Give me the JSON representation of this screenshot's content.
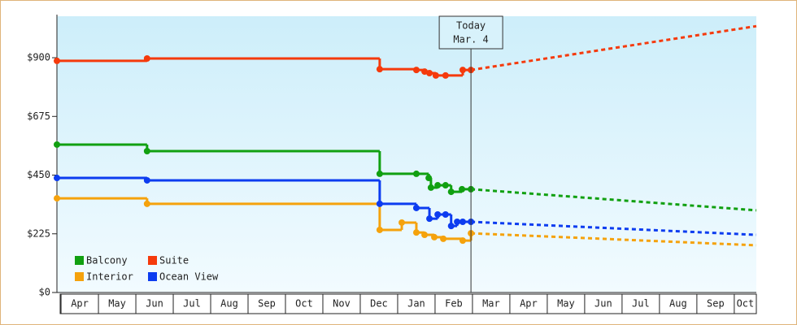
{
  "chart_data": {
    "type": "step-line",
    "xlim": [
      -0.11,
      18.59
    ],
    "ylim": [
      0,
      1059
    ],
    "xticks": [
      {
        "value": 0,
        "label": "Apr"
      },
      {
        "value": 1,
        "label": "May"
      },
      {
        "value": 2,
        "label": "Jun"
      },
      {
        "value": 3,
        "label": "Jul"
      },
      {
        "value": 4,
        "label": "Aug"
      },
      {
        "value": 5,
        "label": "Sep"
      },
      {
        "value": 6,
        "label": "Oct"
      },
      {
        "value": 7,
        "label": "Nov"
      },
      {
        "value": 8,
        "label": "Dec"
      },
      {
        "value": 9,
        "label": "Jan"
      },
      {
        "value": 10,
        "label": "Feb"
      },
      {
        "value": 11,
        "label": "Mar"
      },
      {
        "value": 12,
        "label": "Apr"
      },
      {
        "value": 13,
        "label": "May"
      },
      {
        "value": 14,
        "label": "Jun"
      },
      {
        "value": 15,
        "label": "Jul"
      },
      {
        "value": 16,
        "label": "Aug"
      },
      {
        "value": 17,
        "label": "Sep"
      },
      {
        "value": 18,
        "label": "Oct"
      }
    ],
    "yticks": [
      {
        "value": 0,
        "label": "$0"
      },
      {
        "value": 225,
        "label": "$225"
      },
      {
        "value": 450,
        "label": "$450"
      },
      {
        "value": 675,
        "label": "$675"
      },
      {
        "value": 900,
        "label": "$900"
      }
    ],
    "annotation": {
      "x": 10.96,
      "lines": [
        "Today",
        "Mar. 4"
      ]
    },
    "series": [
      {
        "name": "Balcony",
        "color": "#11a011",
        "x": [
          -0.11,
          2.3,
          8.52,
          9.5,
          9.83,
          9.89,
          10.07,
          10.28,
          10.43,
          10.72,
          10.96
        ],
        "values": [
          567,
          542,
          455,
          455,
          439,
          402,
          411,
          411,
          386,
          396,
          396
        ],
        "projection": {
          "x": [
            10.96,
            18.59
          ],
          "values": [
            396,
            315
          ]
        }
      },
      {
        "name": "Suite",
        "color": "#f53a0c",
        "x": [
          -0.11,
          2.3,
          8.52,
          9.5,
          9.72,
          9.85,
          10.02,
          10.28,
          10.74,
          10.96
        ],
        "values": [
          888,
          897,
          856,
          853,
          847,
          841,
          832,
          832,
          853,
          853
        ],
        "projection": {
          "x": [
            10.96,
            18.59
          ],
          "values": [
            853,
            1021
          ]
        }
      },
      {
        "name": "Interior",
        "color": "#f5a20c",
        "x": [
          -0.11,
          2.3,
          8.52,
          9.11,
          9.5,
          9.72,
          9.98,
          10.22,
          10.74,
          10.96
        ],
        "values": [
          361,
          340,
          240,
          268,
          230,
          221,
          212,
          206,
          199,
          227
        ],
        "projection": {
          "x": [
            10.96,
            18.59
          ],
          "values": [
            227,
            181
          ]
        }
      },
      {
        "name": "Ocean View",
        "color": "#0c3cf0",
        "x": [
          -0.11,
          2.3,
          8.52,
          9.5,
          9.85,
          10.07,
          10.28,
          10.43,
          10.59,
          10.74,
          10.96
        ],
        "values": [
          439,
          430,
          340,
          324,
          283,
          299,
          299,
          255,
          271,
          271,
          271
        ],
        "projection": {
          "x": [
            10.96,
            18.59
          ],
          "values": [
            271,
            221
          ]
        }
      }
    ]
  }
}
